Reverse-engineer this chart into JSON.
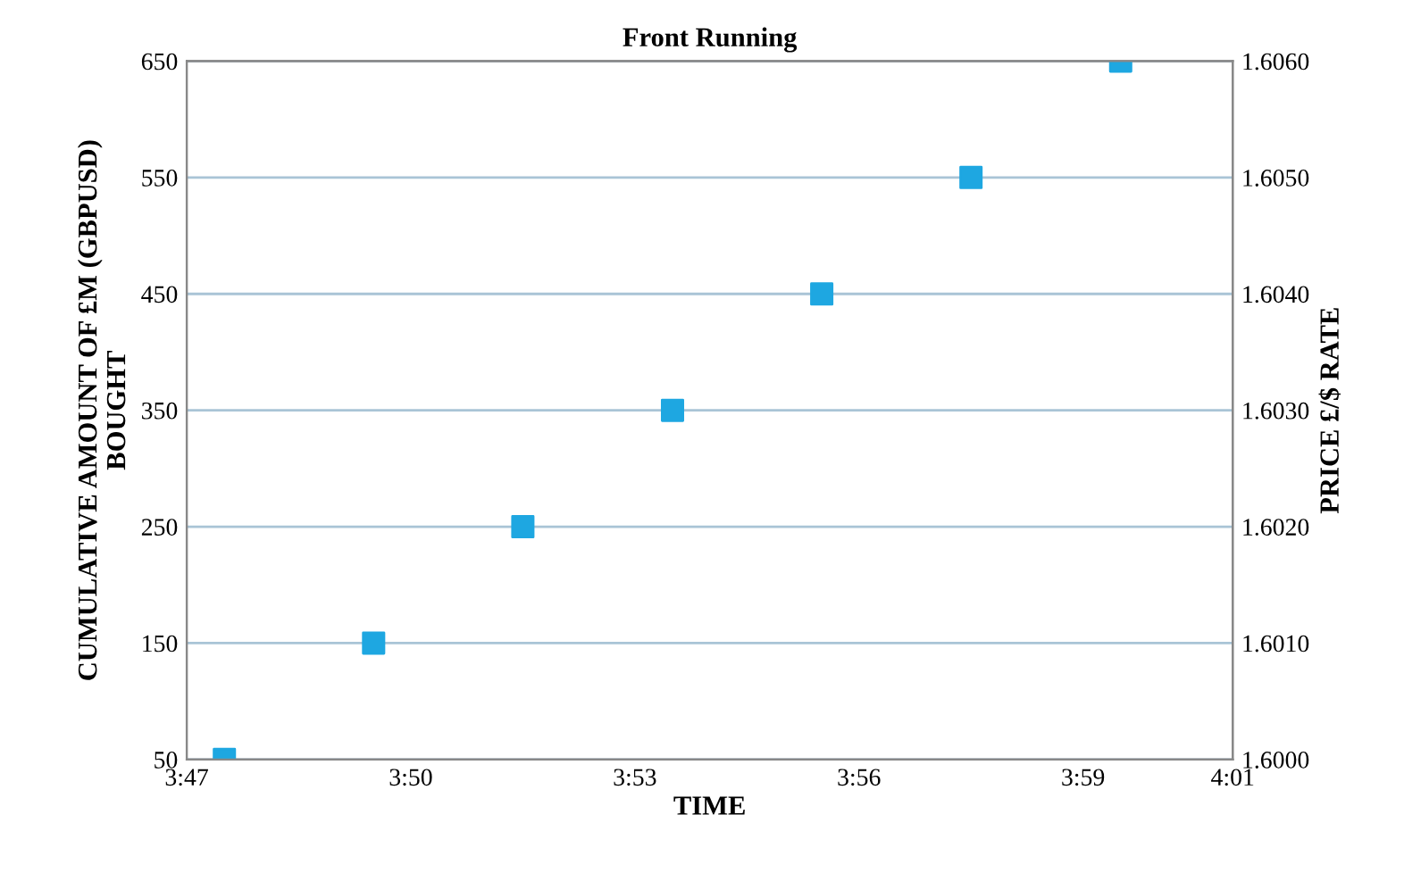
{
  "chart_data": {
    "type": "scatter",
    "title": "Front Running",
    "xlabel": "TIME",
    "ylabel": "CUMULATIVE AMOUNT OF £M (GBPUSD)\nBOUGHT",
    "y2label": "PRICE £/$ RATE",
    "x": [
      3.7917,
      3.825,
      3.8583,
      3.8917,
      3.925,
      3.9583,
      3.9917
    ],
    "series": [
      {
        "color": "#1ea7e1",
        "values": [
          50,
          150,
          250,
          350,
          450,
          550,
          650
        ]
      }
    ],
    "xlim": [
      3.7833,
      4.0167
    ],
    "xticks": [
      {
        "value": 3.7833,
        "label": "3:47"
      },
      {
        "value": 3.8333,
        "label": "3:50"
      },
      {
        "value": 3.8833,
        "label": "3:53"
      },
      {
        "value": 3.9333,
        "label": "3:56"
      },
      {
        "value": 3.9833,
        "label": "3:59"
      },
      {
        "value": 4.0167,
        "label": "4:01"
      }
    ],
    "ylim": [
      50,
      650
    ],
    "yticks": [
      50,
      150,
      250,
      350,
      450,
      550,
      650
    ],
    "y2lim": [
      1.6,
      1.606
    ],
    "y2ticks": [
      {
        "value": 1.6,
        "label": "1.6000"
      },
      {
        "value": 1.601,
        "label": "1.6010"
      },
      {
        "value": 1.602,
        "label": "1.6020"
      },
      {
        "value": 1.603,
        "label": "1.6030"
      },
      {
        "value": 1.604,
        "label": "1.6040"
      },
      {
        "value": 1.605,
        "label": "1.6050"
      },
      {
        "value": 1.606,
        "label": "1.6060"
      }
    ],
    "grid": "y",
    "marker": "square"
  }
}
